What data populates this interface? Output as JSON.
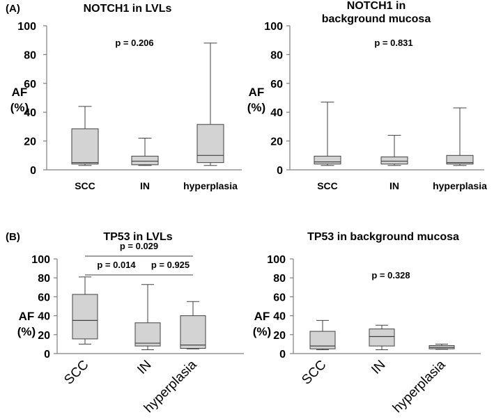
{
  "chart_data": [
    {
      "panel": "(A)",
      "type": "boxplot",
      "title": [
        "NOTCH1 in LVLs"
      ],
      "ylabel": [
        "AF",
        "(%)"
      ],
      "ylim": [
        0,
        100
      ],
      "yticks": [
        "0",
        "20",
        "40",
        "60",
        "80",
        "100"
      ],
      "categories": [
        "SCC",
        "IN",
        "hyperplasia"
      ],
      "boxes": [
        {
          "min": 3,
          "q1": 4,
          "median": 5,
          "q3": 28.5,
          "max": 44
        },
        {
          "min": 3,
          "q1": 3.5,
          "median": 6,
          "q3": 9.5,
          "max": 22
        },
        {
          "min": 3,
          "q1": 5,
          "median": 10,
          "q3": 31.5,
          "max": 88
        }
      ],
      "pvalues": [
        {
          "text": "p = 0.206"
        }
      ]
    },
    {
      "panel": "",
      "type": "boxplot",
      "title": [
        "NOTCH1 in",
        "background mucosa"
      ],
      "ylabel": [
        "AF",
        "(%)"
      ],
      "ylim": [
        0,
        100
      ],
      "yticks": [
        "0",
        "20",
        "40",
        "60",
        "80",
        "100"
      ],
      "categories": [
        "SCC",
        "IN",
        "hyperplasia"
      ],
      "boxes": [
        {
          "min": 3,
          "q1": 4,
          "median": 5.5,
          "q3": 9.5,
          "max": 47
        },
        {
          "min": 3,
          "q1": 4,
          "median": 6,
          "q3": 9,
          "max": 24
        },
        {
          "min": 3,
          "q1": 4,
          "median": 5,
          "q3": 10,
          "max": 43
        }
      ],
      "pvalues": [
        {
          "text": "p = 0.831"
        }
      ]
    },
    {
      "panel": "(B)",
      "type": "boxplot",
      "title": [
        "TP53 in LVLs"
      ],
      "ylabel": [
        "AF",
        "(%)"
      ],
      "ylim": [
        0,
        100
      ],
      "yticks": [
        "0",
        "20",
        "40",
        "60",
        "80",
        "100"
      ],
      "categories": [
        "SCC",
        "IN",
        "hyperplasia"
      ],
      "boxes": [
        {
          "min": 10,
          "q1": 15.5,
          "median": 35,
          "q3": 62.5,
          "max": 81
        },
        {
          "min": 4,
          "q1": 8,
          "median": 11,
          "q3": 32.5,
          "max": 73
        },
        {
          "min": 5,
          "q1": 5.5,
          "median": 9,
          "q3": 40,
          "max": 55
        }
      ],
      "pvalues": [
        {
          "text": "p = 0.029",
          "from": 0,
          "to": 2
        },
        {
          "text": "p = 0.014",
          "from": 0,
          "to": 1
        },
        {
          "text": "p = 0.925",
          "from": 1,
          "to": 2
        }
      ]
    },
    {
      "panel": "",
      "type": "boxplot",
      "title": [
        "TP53 in background mucosa"
      ],
      "ylabel": [
        "AF",
        "(%)"
      ],
      "ylim": [
        0,
        100
      ],
      "yticks": [
        "0",
        "20",
        "40",
        "60",
        "80",
        "100"
      ],
      "categories": [
        "SCC",
        "IN",
        "hyperplasia"
      ],
      "boxes": [
        {
          "min": 4,
          "q1": 5,
          "median": 8,
          "q3": 23.5,
          "max": 35
        },
        {
          "min": 4,
          "q1": 8,
          "median": 18,
          "q3": 26,
          "max": 30
        },
        {
          "min": 4.5,
          "q1": 5,
          "median": 6.5,
          "q3": 8.5,
          "max": 10
        }
      ],
      "pvalues": [
        {
          "text": "p = 0.328"
        }
      ]
    }
  ],
  "colors": {
    "box_fill": "#d3d3d3",
    "line": "#404040",
    "axis": "#7f7f7f"
  }
}
